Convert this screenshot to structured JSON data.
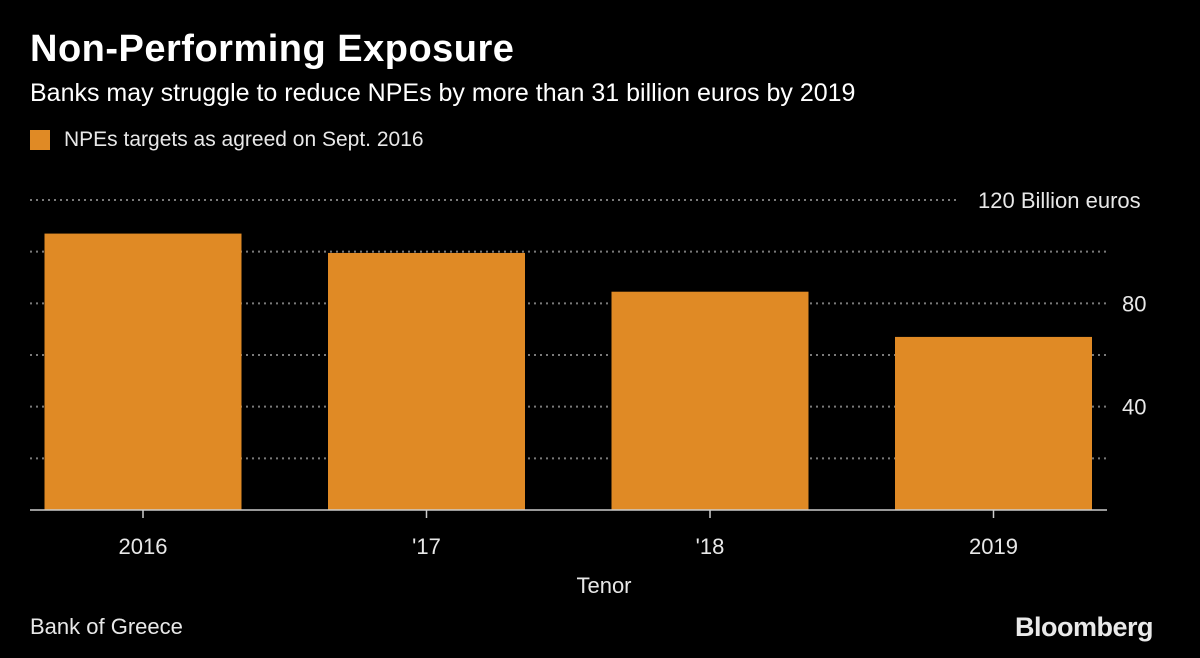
{
  "title": "Non-Performing Exposure",
  "subtitle": "Banks may struggle to reduce NPEs by more than 31 billion euros by 2019",
  "source": "Bank of Greece",
  "brand": "Bloomberg",
  "colors": {
    "background": "#000000",
    "bar": "#e08a25",
    "grid": "#7a7a7a",
    "axis": "#cccccc",
    "text": "#ffffff"
  },
  "chart_data": {
    "type": "bar",
    "title": "Non-Performing Exposure",
    "subtitle": "Banks may struggle to reduce NPEs by more than 31 billion euros by 2019",
    "categories": [
      "2016",
      "'17",
      "'18",
      "2019"
    ],
    "series": [
      {
        "name": "NPEs targets as agreed on Sept. 2016",
        "values": [
          107,
          99.5,
          84.5,
          67
        ]
      }
    ],
    "xlabel": "Tenor",
    "ylabel": "",
    "ylim": [
      0,
      120
    ],
    "ytick_values": [
      20,
      40,
      60,
      80,
      100,
      120
    ],
    "ytick_labels": [
      "",
      "40",
      "",
      "80",
      "",
      "120 Billion euros"
    ],
    "grid": true,
    "legend_position": "top-left"
  }
}
